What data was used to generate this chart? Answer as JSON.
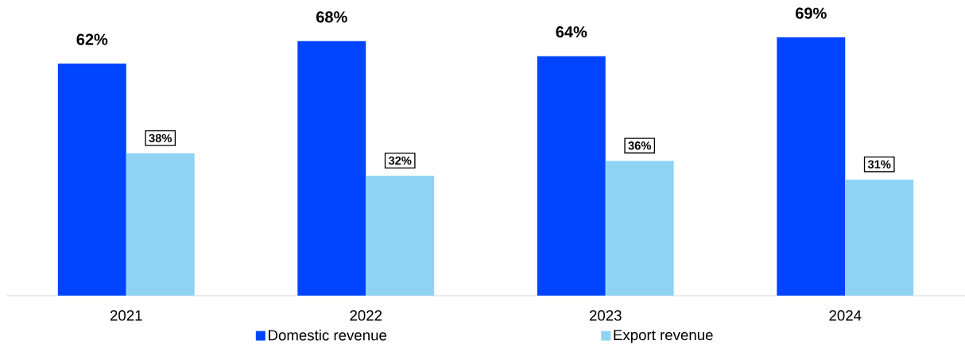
{
  "chart_data": {
    "type": "bar",
    "categories": [
      "2021",
      "2022",
      "2023",
      "2024"
    ],
    "series": [
      {
        "name": "Domestic revenue",
        "color": "#0044ff",
        "values": [
          62,
          68,
          64,
          69
        ],
        "value_labels": [
          "62%",
          "68%",
          "64%",
          "69%"
        ]
      },
      {
        "name": "Export revenue",
        "color": "#8fd3f4",
        "values": [
          38,
          32,
          36,
          31
        ],
        "value_labels": [
          "38%",
          "32%",
          "36%",
          "31%"
        ]
      }
    ],
    "legend": "bottom"
  }
}
